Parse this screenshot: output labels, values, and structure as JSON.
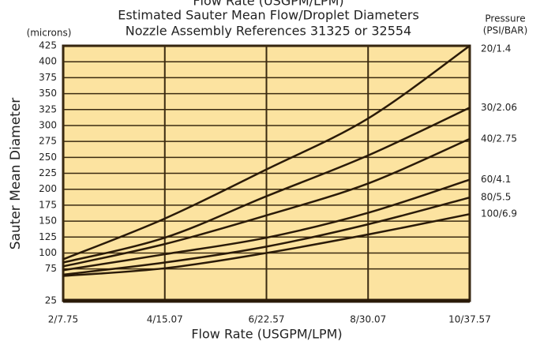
{
  "chart_data": {
    "type": "line",
    "top_title": "Flow Rate (USGPM/LPM)",
    "title": "Estimated Sauter Mean Flow/Droplet Diameters",
    "subtitle": "Nozzle Assembly References 31325 or 32554",
    "y_units": "(microns)",
    "legend_title": "Pressure",
    "legend_subtitle": "(PSI/BAR)",
    "y_label": "Sauter Mean Diameter",
    "x_label": "Flow Rate (USGPM/LPM)",
    "x": [
      2,
      4,
      6,
      8,
      10
    ],
    "series": [
      {
        "name": "20/1.4",
        "color": "#2a1a08",
        "values": [
          90,
          154,
          231,
          311,
          425
        ]
      },
      {
        "name": "30/2.06",
        "color": "#2a1a08",
        "values": [
          85,
          124,
          189,
          253,
          328
        ]
      },
      {
        "name": "40/2.75",
        "color": "#2a1a08",
        "values": [
          79,
          114,
          159,
          209,
          279
        ]
      },
      {
        "name": "60/4.1",
        "color": "#2a1a08",
        "values": [
          73,
          98,
          124,
          163,
          215
        ]
      },
      {
        "name": "80/5.5",
        "color": "#2a1a08",
        "values": [
          66,
          85,
          110,
          145,
          187
        ]
      },
      {
        "name": "100/6.9",
        "color": "#2a1a08",
        "values": [
          64,
          76,
          100,
          129,
          161
        ]
      }
    ],
    "xlim": [
      2,
      10
    ],
    "xticks": [
      {
        "value": 2,
        "label": "2/7.75"
      },
      {
        "value": 4,
        "label": "4/15.07"
      },
      {
        "value": 6,
        "label": "6/22.57"
      },
      {
        "value": 8,
        "label": "8/30.07"
      },
      {
        "value": 10,
        "label": "10/37.57"
      }
    ],
    "ylim": [
      25,
      425
    ],
    "yticks": [
      25,
      75,
      100,
      125,
      150,
      175,
      200,
      225,
      250,
      275,
      300,
      325,
      350,
      375,
      400,
      425
    ],
    "grid": true
  }
}
